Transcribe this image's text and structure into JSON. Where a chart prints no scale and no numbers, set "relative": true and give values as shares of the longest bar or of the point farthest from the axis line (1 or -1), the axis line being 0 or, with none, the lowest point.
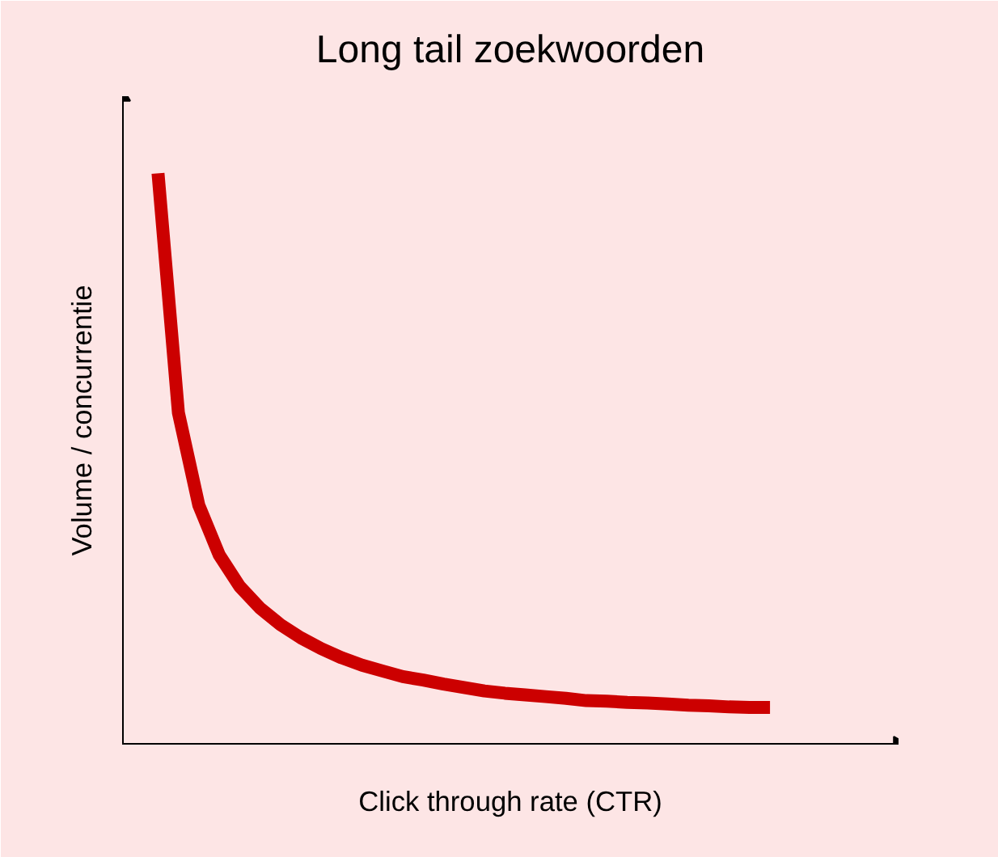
{
  "chart_data": {
    "type": "line",
    "title": "Long tail zoekwoorden",
    "xlabel": "Click through rate (CTR)",
    "ylabel": "Volume / concurrentie",
    "relative": true,
    "categories": [
      null,
      null,
      null,
      null,
      null,
      null,
      null,
      null,
      null,
      null,
      null,
      null,
      null,
      null,
      null,
      null,
      null,
      null,
      null,
      null,
      null,
      null,
      null,
      null,
      null,
      null,
      null,
      null,
      null,
      null,
      null
    ],
    "series": [
      {
        "color": "#cc0000",
        "values": [
          1,
          0.581,
          0.419,
          0.332,
          0.277,
          0.239,
          0.21,
          0.187,
          0.168,
          0.152,
          0.139,
          0.129,
          0.119,
          0.113,
          0.106,
          0.1,
          0.094,
          0.09,
          0.087,
          0.084,
          0.081,
          0.077,
          0.076,
          0.074,
          0.073,
          0.071,
          0.069,
          0.068,
          0.066,
          0.065,
          0.065
        ]
      }
    ],
    "marker": "none",
    "line_style": "solid"
  }
}
